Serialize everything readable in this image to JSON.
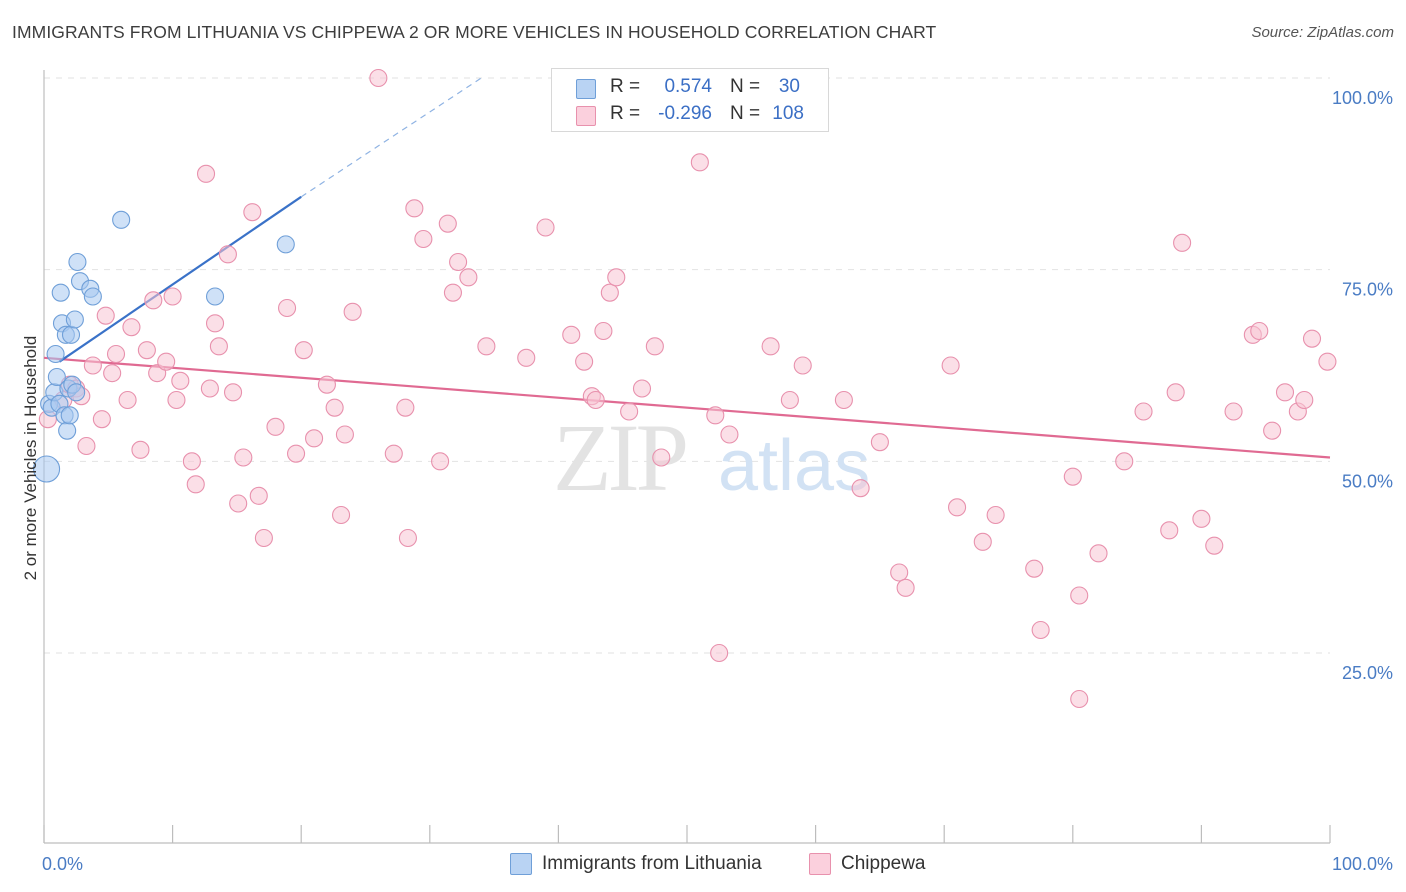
{
  "title": "IMMIGRANTS FROM LITHUANIA VS CHIPPEWA 2 OR MORE VEHICLES IN HOUSEHOLD CORRELATION CHART",
  "source": "Source: ZipAtlas.com",
  "watermark": {
    "zip": "ZIP",
    "atlas": "atlas"
  },
  "legend": {
    "r_label": "R =",
    "n_label": "N =",
    "series1": {
      "r": "0.574",
      "n": "30"
    },
    "series2": {
      "r": "-0.296",
      "n": "108"
    }
  },
  "chart_data": {
    "type": "scatter",
    "title": "IMMIGRANTS FROM LITHUANIA VS CHIPPEWA 2 OR MORE VEHICLES IN HOUSEHOLD CORRELATION CHART",
    "xlabel": "",
    "ylabel": "2 or more Vehicles in Household",
    "xlim": [
      0,
      100
    ],
    "ylim": [
      0,
      102
    ],
    "x_tick_labels": [
      {
        "value": 0,
        "label": "0.0%"
      },
      {
        "value": 100,
        "label": "100.0%"
      }
    ],
    "y_tick_labels": [
      {
        "value": 25,
        "label": "25.0%"
      },
      {
        "value": 50,
        "label": "50.0%"
      },
      {
        "value": 75,
        "label": "75.0%"
      },
      {
        "value": 100,
        "label": "100.0%"
      }
    ],
    "grid": true,
    "legend_position": "top-center",
    "series": [
      {
        "name": "Immigrants from Lithuania",
        "color": "#a8c8f0",
        "stroke": "#6f9fd8",
        "line_color": "#3a72c8",
        "r": 0.574,
        "n": 30,
        "trend": {
          "x0": 1.2,
          "y0": 63,
          "x1": 20,
          "y1": 84.5,
          "x_dash_end": 34,
          "y_dash_end": 100
        },
        "points": [
          [
            0.2,
            49
          ],
          [
            0.4,
            57.5
          ],
          [
            0.6,
            57
          ],
          [
            0.8,
            59
          ],
          [
            0.9,
            64
          ],
          [
            1.0,
            61
          ],
          [
            1.2,
            57.5
          ],
          [
            1.3,
            72
          ],
          [
            1.4,
            68
          ],
          [
            1.6,
            56
          ],
          [
            1.7,
            66.5
          ],
          [
            1.8,
            54
          ],
          [
            1.9,
            59.5
          ],
          [
            2.0,
            56
          ],
          [
            2.1,
            66.5
          ],
          [
            2.2,
            60
          ],
          [
            2.4,
            68.5
          ],
          [
            2.5,
            59
          ],
          [
            2.6,
            76
          ],
          [
            2.8,
            73.5
          ],
          [
            3.6,
            72.5
          ],
          [
            3.8,
            71.5
          ],
          [
            6.0,
            81.5
          ],
          [
            13.3,
            71.5
          ],
          [
            18.8,
            78.3
          ]
        ]
      },
      {
        "name": "Chippewa",
        "color": "#f8c4d4",
        "stroke": "#e891ad",
        "line_color": "#e06a92",
        "r": -0.296,
        "n": 108,
        "trend": {
          "x0": 0,
          "y0": 63.5,
          "x1": 100,
          "y1": 50.5
        },
        "points": [
          [
            0.3,
            55.5
          ],
          [
            1.5,
            58
          ],
          [
            2.0,
            60
          ],
          [
            2.5,
            59.5
          ],
          [
            2.9,
            58.5
          ],
          [
            3.3,
            52
          ],
          [
            3.8,
            62.5
          ],
          [
            4.5,
            55.5
          ],
          [
            4.8,
            69
          ],
          [
            5.3,
            61.5
          ],
          [
            5.6,
            64
          ],
          [
            6.5,
            58
          ],
          [
            6.8,
            67.5
          ],
          [
            7.5,
            51.5
          ],
          [
            8.0,
            64.5
          ],
          [
            8.5,
            71
          ],
          [
            8.8,
            61.5
          ],
          [
            9.5,
            63
          ],
          [
            10.0,
            71.5
          ],
          [
            10.3,
            58
          ],
          [
            10.6,
            60.5
          ],
          [
            11.5,
            50
          ],
          [
            11.8,
            47
          ],
          [
            12.6,
            87.5
          ],
          [
            12.9,
            59.5
          ],
          [
            13.3,
            68
          ],
          [
            13.6,
            65
          ],
          [
            14.3,
            77
          ],
          [
            14.7,
            59
          ],
          [
            15.1,
            44.5
          ],
          [
            15.5,
            50.5
          ],
          [
            16.2,
            82.5
          ],
          [
            16.7,
            45.5
          ],
          [
            17.1,
            40
          ],
          [
            18.0,
            54.5
          ],
          [
            18.9,
            70
          ],
          [
            19.6,
            51
          ],
          [
            20.2,
            64.5
          ],
          [
            21.0,
            53
          ],
          [
            22.0,
            60
          ],
          [
            22.6,
            57
          ],
          [
            23.1,
            43
          ],
          [
            23.4,
            53.5
          ],
          [
            24.0,
            69.5
          ],
          [
            26.0,
            100
          ],
          [
            27.2,
            51
          ],
          [
            28.1,
            57
          ],
          [
            28.3,
            40
          ],
          [
            28.8,
            83
          ],
          [
            29.5,
            79
          ],
          [
            30.8,
            50
          ],
          [
            31.4,
            81
          ],
          [
            31.8,
            72
          ],
          [
            32.2,
            76
          ],
          [
            33.0,
            74
          ],
          [
            34.4,
            65
          ],
          [
            37.5,
            63.5
          ],
          [
            39.0,
            80.5
          ],
          [
            41.0,
            66.5
          ],
          [
            42.0,
            63
          ],
          [
            42.6,
            58.5
          ],
          [
            42.9,
            58
          ],
          [
            43.5,
            67
          ],
          [
            44.0,
            72
          ],
          [
            44.5,
            74
          ],
          [
            45.5,
            56.5
          ],
          [
            46.5,
            59.5
          ],
          [
            47.5,
            65
          ],
          [
            48.0,
            50.5
          ],
          [
            51.0,
            89
          ],
          [
            52.2,
            56
          ],
          [
            52.5,
            25
          ],
          [
            53.3,
            53.5
          ],
          [
            56.5,
            65
          ],
          [
            58.0,
            58
          ],
          [
            59.0,
            62.5
          ],
          [
            62.2,
            58
          ],
          [
            63.5,
            46.5
          ],
          [
            65.0,
            52.5
          ],
          [
            66.5,
            35.5
          ],
          [
            67.0,
            33.5
          ],
          [
            70.5,
            62.5
          ],
          [
            71.0,
            44
          ],
          [
            73.0,
            39.5
          ],
          [
            74.0,
            43
          ],
          [
            77.0,
            36
          ],
          [
            77.5,
            28
          ],
          [
            80.0,
            48
          ],
          [
            80.5,
            32.5
          ],
          [
            82.0,
            38
          ],
          [
            84.0,
            50
          ],
          [
            85.5,
            56.5
          ],
          [
            87.5,
            41
          ],
          [
            88.0,
            59
          ],
          [
            88.5,
            78.5
          ],
          [
            90.0,
            42.5
          ],
          [
            91.0,
            39
          ],
          [
            92.5,
            56.5
          ],
          [
            94.0,
            66.5
          ],
          [
            94.5,
            67
          ],
          [
            95.5,
            54
          ],
          [
            96.5,
            59
          ],
          [
            97.5,
            56.5
          ],
          [
            98.0,
            58
          ],
          [
            98.6,
            66
          ],
          [
            99.8,
            63
          ],
          [
            80.5,
            19
          ]
        ]
      }
    ]
  },
  "bottom_legend": [
    {
      "label": "Immigrants from Lithuania"
    },
    {
      "label": "Chippewa"
    }
  ]
}
